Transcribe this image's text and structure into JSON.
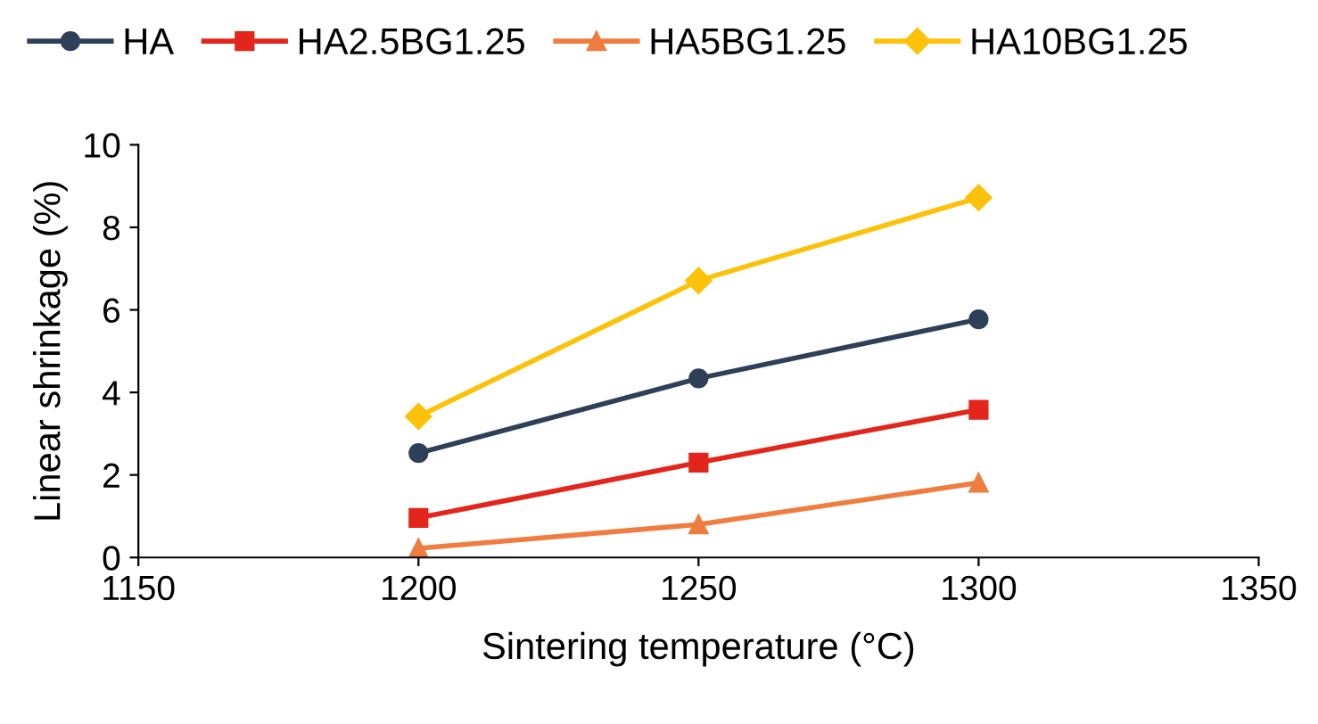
{
  "chart_data": {
    "type": "line",
    "xlabel": "Sintering temperature (°C)",
    "ylabel": "Linear shrinkage (%)",
    "x": [
      1200,
      1250,
      1300
    ],
    "series": [
      {
        "name": "HA",
        "color": "#2e4057",
        "marker": "circle",
        "values": [
          2.53,
          4.34,
          5.77
        ]
      },
      {
        "name": "HA2.5BG1.25",
        "color": "#e3261b",
        "marker": "square",
        "values": [
          0.96,
          2.3,
          3.58
        ]
      },
      {
        "name": "HA5BG1.25",
        "color": "#ef7d3f",
        "marker": "triangle",
        "values": [
          0.22,
          0.8,
          1.81
        ]
      },
      {
        "name": "HA10BG1.25",
        "color": "#fcc20a",
        "marker": "diamond",
        "values": [
          3.42,
          6.71,
          8.72
        ]
      }
    ],
    "xlim": [
      1150,
      1350
    ],
    "xticks": [
      1150,
      1200,
      1250,
      1300,
      1350
    ],
    "ylim": [
      0,
      10
    ],
    "yticks": [
      0,
      2,
      4,
      6,
      8,
      10
    ],
    "grid": false,
    "legend": "top",
    "line_style": "solid"
  }
}
